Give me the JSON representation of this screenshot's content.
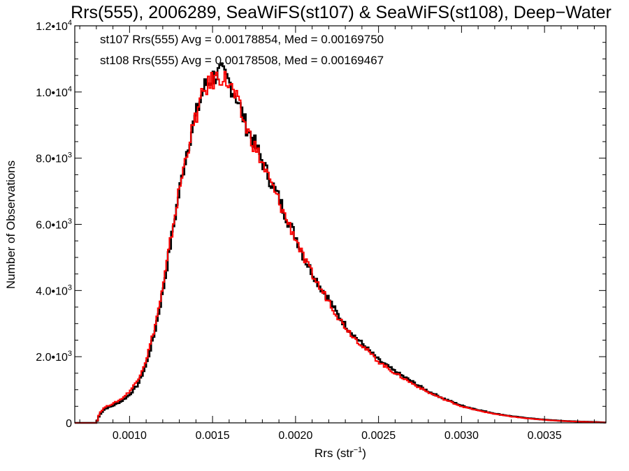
{
  "chart_data": {
    "type": "line",
    "title": "Rrs(555), 2006289, SeaWiFS(st107) & SeaWiFS(st108), Deep−Water",
    "xlabel_main": "Rrs (str",
    "xlabel_sup": "−1",
    "xlabel_end": ")",
    "ylabel": "Number of Observations",
    "xlim": [
      0.00067,
      0.00387
    ],
    "ylim": [
      0,
      12000
    ],
    "x_ticks": [
      {
        "value": 0.001,
        "label": "0.0010"
      },
      {
        "value": 0.0015,
        "label": "0.0015"
      },
      {
        "value": 0.002,
        "label": "0.0020"
      },
      {
        "value": 0.0025,
        "label": "0.0025"
      },
      {
        "value": 0.003,
        "label": "0.0030"
      },
      {
        "value": 0.0035,
        "label": "0.0035"
      }
    ],
    "y_ticks": [
      {
        "value": 0,
        "label": "0",
        "sup": ""
      },
      {
        "value": 2000,
        "label": "2.0•10",
        "sup": "3"
      },
      {
        "value": 4000,
        "label": "4.0•10",
        "sup": "3"
      },
      {
        "value": 6000,
        "label": "6.0•10",
        "sup": "3"
      },
      {
        "value": 8000,
        "label": "8.0•10",
        "sup": "3"
      },
      {
        "value": 10000,
        "label": "1.0•10",
        "sup": "4"
      },
      {
        "value": 12000,
        "label": "1.2•10",
        "sup": "4"
      }
    ],
    "annotations": [
      {
        "text": "st107 Rrs(555) Avg = 0.00178854, Med = 0.00169750",
        "color": "#000000"
      },
      {
        "text": "st108 Rrs(555) Avg = 0.00178508, Med = 0.00169467",
        "color": "#ff0000"
      }
    ],
    "series": [
      {
        "color": "#000000",
        "x": [
          0.00067,
          0.0008,
          0.00082,
          0.00085,
          0.0009,
          0.00095,
          0.001,
          0.00105,
          0.0011,
          0.00115,
          0.0012,
          0.00125,
          0.0013,
          0.00135,
          0.0014,
          0.00145,
          0.0015,
          0.00155,
          0.0016,
          0.00165,
          0.0017,
          0.00175,
          0.0018,
          0.00185,
          0.0019,
          0.00195,
          0.002,
          0.00205,
          0.0021,
          0.00215,
          0.0022,
          0.00225,
          0.0023,
          0.00235,
          0.0024,
          0.00245,
          0.0025,
          0.0026,
          0.0027,
          0.0028,
          0.0029,
          0.003,
          0.0031,
          0.0032,
          0.0033,
          0.0034,
          0.0035,
          0.0036,
          0.0037,
          0.0038,
          0.00387
        ],
        "values": [
          0,
          0,
          250,
          420,
          520,
          650,
          850,
          1150,
          1750,
          2700,
          3950,
          5500,
          7000,
          8350,
          9300,
          10150,
          10450,
          10600,
          10300,
          9800,
          9000,
          8500,
          7900,
          7300,
          6800,
          6150,
          5650,
          5000,
          4550,
          4100,
          3750,
          3300,
          2950,
          2650,
          2400,
          2150,
          1900,
          1550,
          1250,
          950,
          720,
          520,
          390,
          280,
          200,
          140,
          95,
          60,
          40,
          25,
          10
        ]
      },
      {
        "color": "#ff0000",
        "x": [
          0.00067,
          0.0008,
          0.00082,
          0.00085,
          0.0009,
          0.00095,
          0.001,
          0.00105,
          0.0011,
          0.00115,
          0.0012,
          0.00125,
          0.0013,
          0.00135,
          0.0014,
          0.00145,
          0.0015,
          0.00155,
          0.0016,
          0.00165,
          0.0017,
          0.00175,
          0.0018,
          0.00185,
          0.0019,
          0.00195,
          0.002,
          0.00205,
          0.0021,
          0.00215,
          0.0022,
          0.00225,
          0.0023,
          0.00235,
          0.0024,
          0.00245,
          0.0025,
          0.0026,
          0.0027,
          0.0028,
          0.0029,
          0.003,
          0.0031,
          0.0032,
          0.0033,
          0.0034,
          0.0035,
          0.0036,
          0.0037,
          0.0038,
          0.00387
        ],
        "values": [
          0,
          0,
          300,
          470,
          580,
          720,
          950,
          1300,
          1900,
          2850,
          4050,
          5600,
          7050,
          8300,
          9250,
          10050,
          10350,
          10500,
          10250,
          9700,
          8950,
          8400,
          7850,
          7250,
          6700,
          6100,
          5600,
          4950,
          4500,
          4050,
          3700,
          3250,
          2900,
          2600,
          2350,
          2100,
          1850,
          1500,
          1200,
          920,
          700,
          500,
          370,
          270,
          190,
          130,
          90,
          58,
          38,
          22,
          8
        ]
      }
    ]
  }
}
